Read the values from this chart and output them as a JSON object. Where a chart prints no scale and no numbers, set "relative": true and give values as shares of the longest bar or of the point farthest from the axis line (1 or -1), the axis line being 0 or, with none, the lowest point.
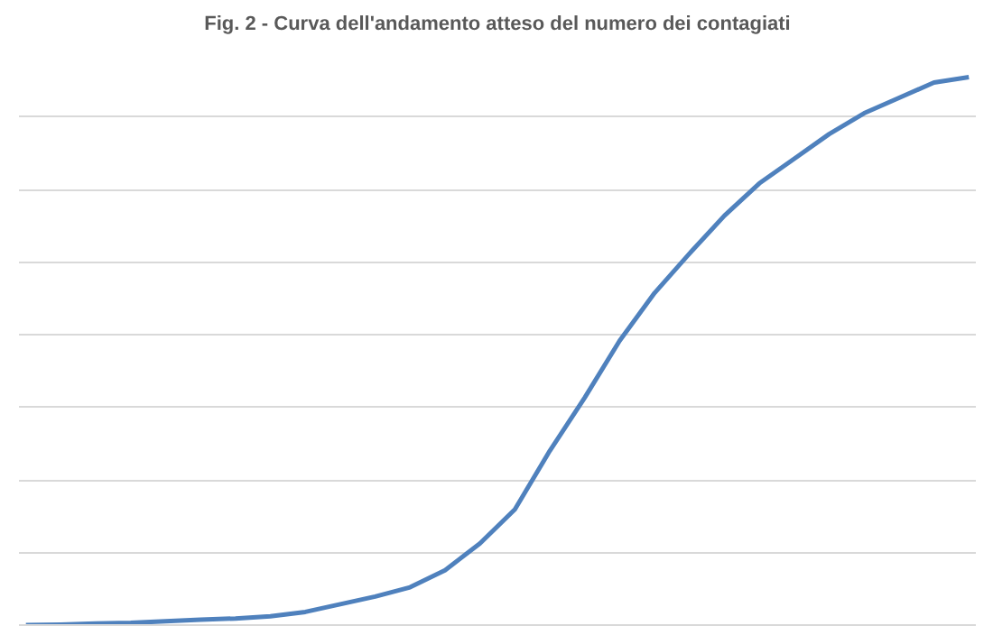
{
  "chart_data": {
    "type": "line",
    "title": "Fig. 2 - Curva dell'andamento atteso del numero dei contagiati",
    "relative": true,
    "grid": "y",
    "color": "#4f81bd",
    "categories": [
      null,
      null,
      null,
      null,
      null,
      null,
      null,
      null,
      null,
      null,
      null,
      null,
      null,
      null,
      null,
      null,
      null,
      null,
      null,
      null,
      null,
      null,
      null,
      null,
      null,
      null,
      null,
      null
    ],
    "values": [
      0,
      0.001,
      0.003,
      0.004,
      0.007,
      0.01,
      0.012,
      0.016,
      0.024,
      0.038,
      0.052,
      0.069,
      0.1,
      0.149,
      0.211,
      0.318,
      0.415,
      0.519,
      0.606,
      0.678,
      0.747,
      0.806,
      0.851,
      0.896,
      0.934,
      0.962,
      0.99,
      1.0
    ]
  }
}
